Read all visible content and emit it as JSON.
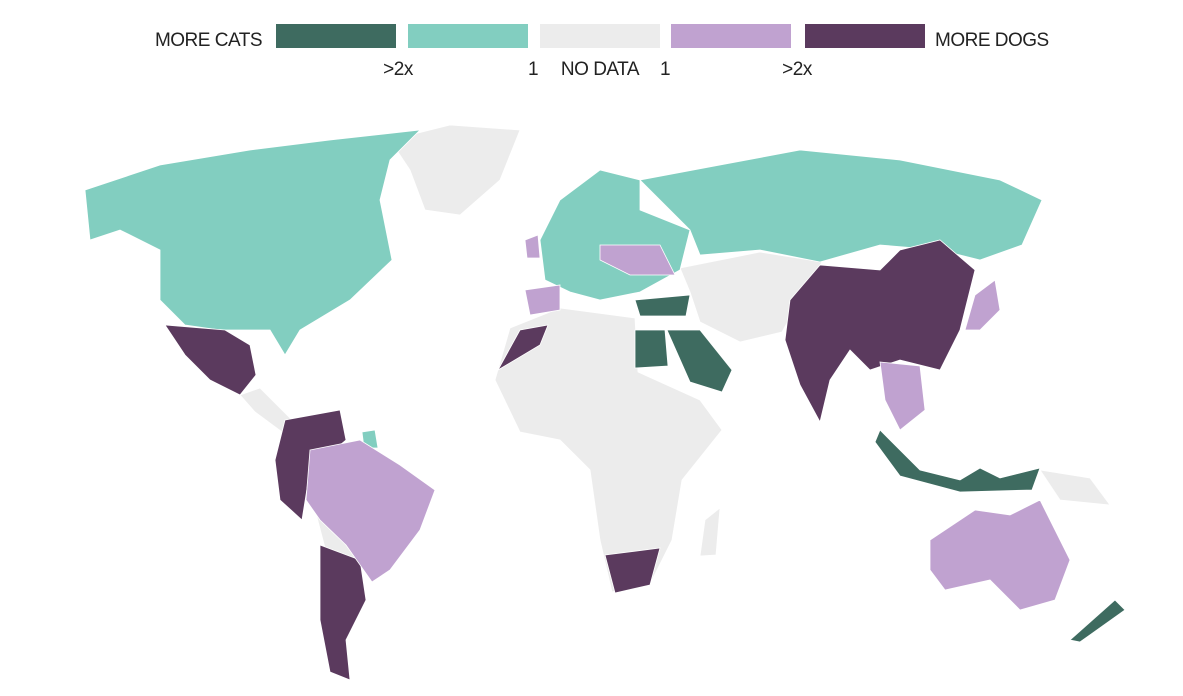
{
  "legend": {
    "left_label": "MORE CATS",
    "right_label": "MORE DOGS",
    "swatches": [
      {
        "color": "#3e6b60"
      },
      {
        "color": "#82cec0"
      },
      {
        "color": "#ececec"
      },
      {
        "color": "#c0a2d0"
      },
      {
        "color": "#5b3a5e"
      }
    ],
    "tick_labels": [
      ">2x",
      "1",
      "NO DATA",
      "1",
      ">2x"
    ]
  }
}
